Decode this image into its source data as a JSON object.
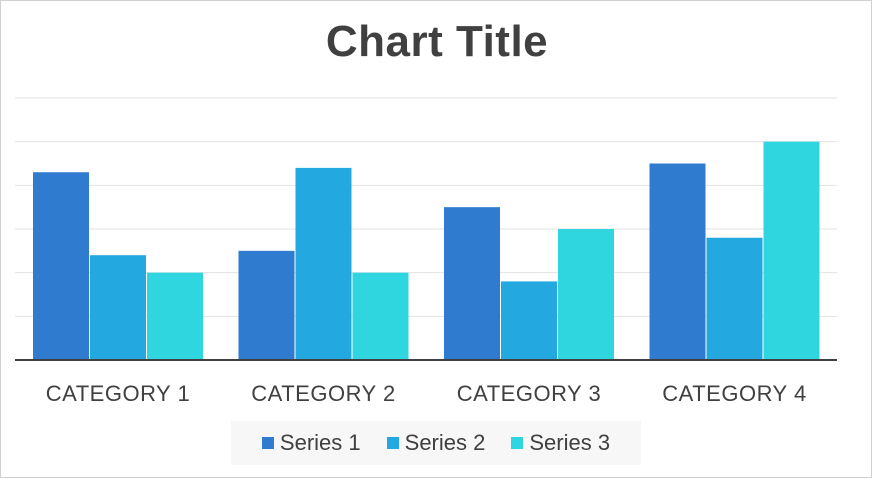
{
  "chart_data": {
    "type": "bar",
    "title": "Chart Title",
    "categories": [
      "CATEGORY 1",
      "CATEGORY 2",
      "CATEGORY 3",
      "CATEGORY 4"
    ],
    "series": [
      {
        "name": "Series 1",
        "values": [
          4.3,
          2.5,
          3.5,
          4.5
        ],
        "color": "#2e7bd0"
      },
      {
        "name": "Series 2",
        "values": [
          2.4,
          4.4,
          1.8,
          2.8
        ],
        "color": "#23a8df"
      },
      {
        "name": "Series 3",
        "values": [
          2.0,
          2.0,
          3.0,
          5.0
        ],
        "color": "#2fd6e0"
      }
    ],
    "ylim": [
      0,
      6
    ],
    "grid": true,
    "legend_position": "bottom"
  }
}
